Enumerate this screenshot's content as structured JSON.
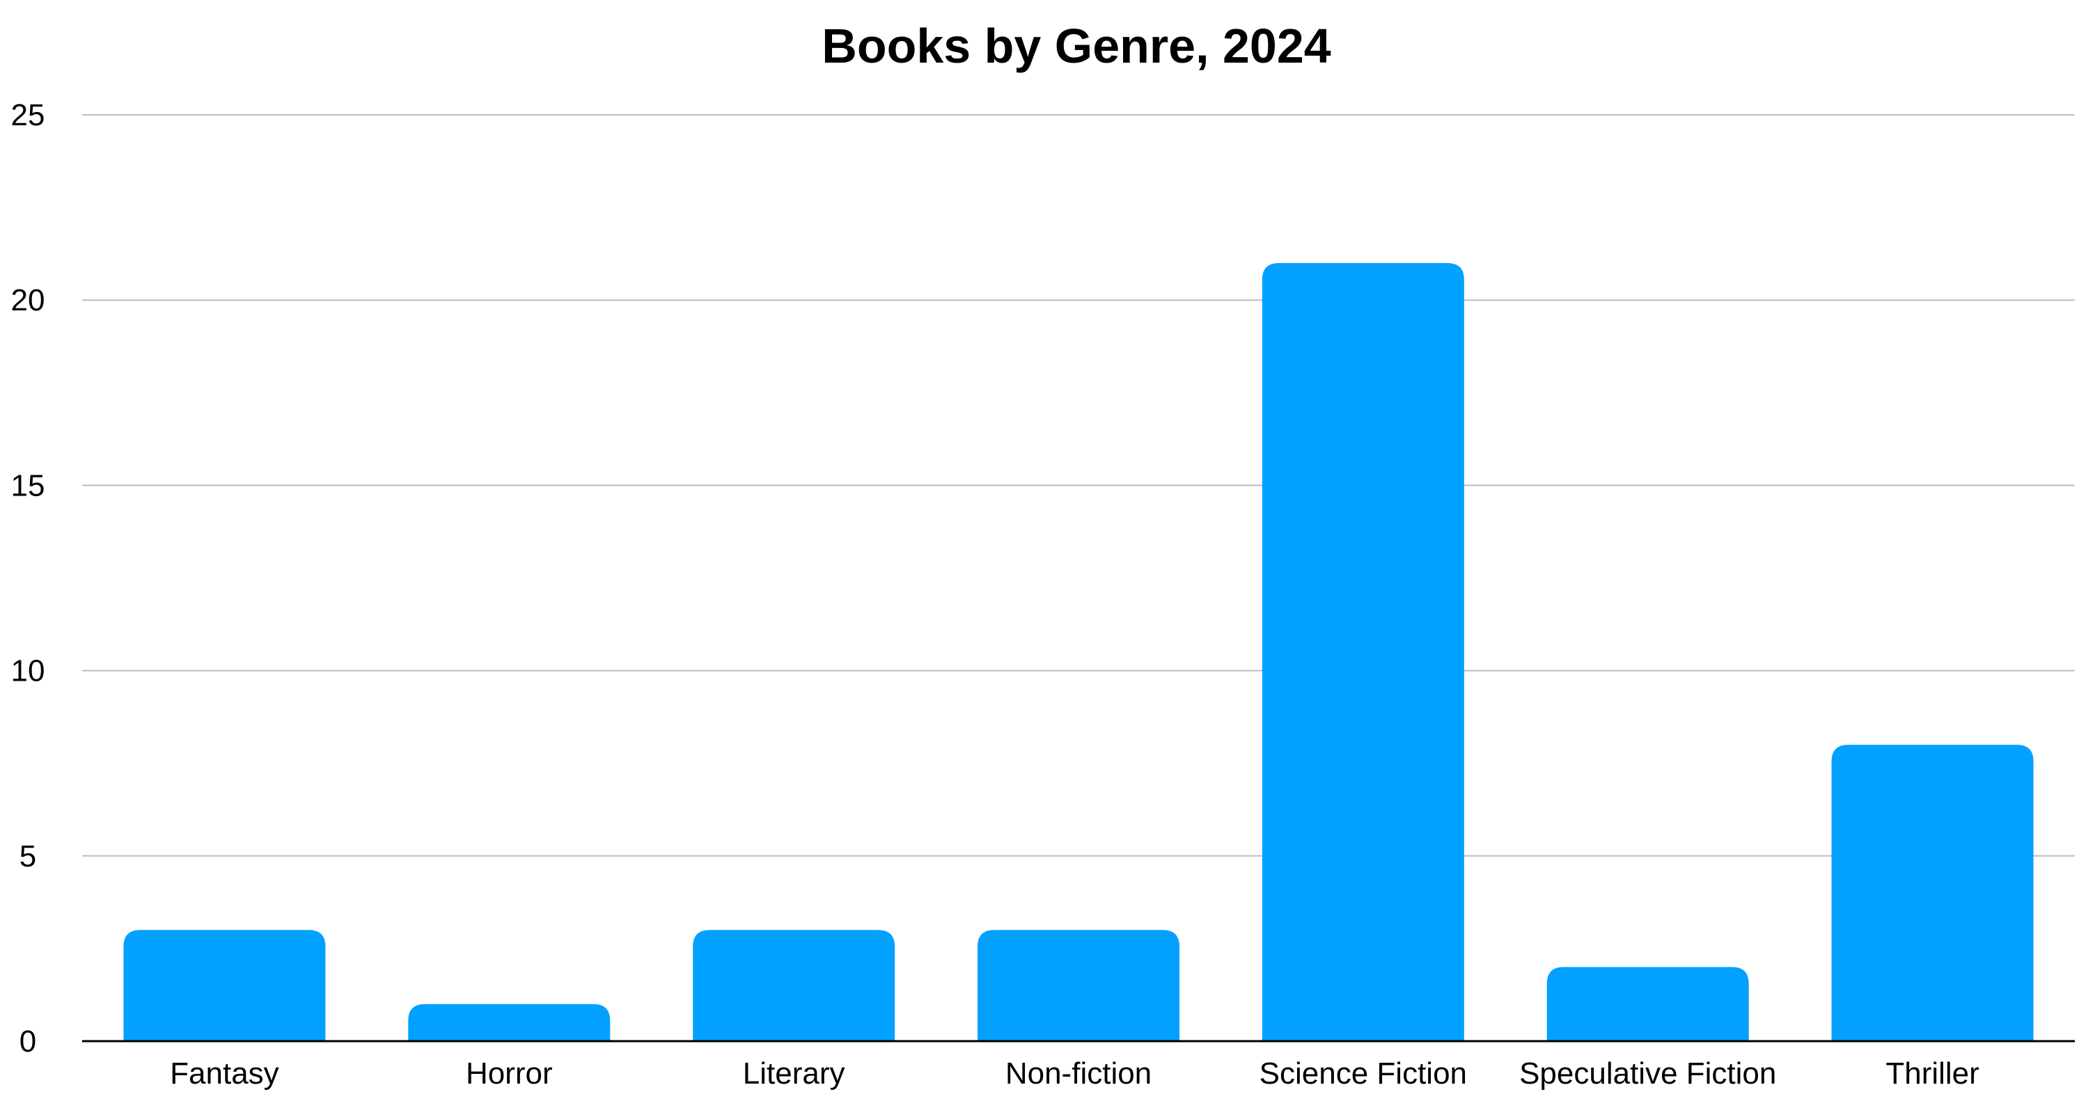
{
  "chart_data": {
    "type": "bar",
    "title": "Books by Genre, 2024",
    "xlabel": "",
    "ylabel": "",
    "categories": [
      "Fantasy",
      "Horror",
      "Literary",
      "Non-fiction",
      "Science Fiction",
      "Speculative Fiction",
      "Thriller"
    ],
    "values": [
      3,
      1,
      3,
      3,
      21,
      2,
      8
    ],
    "ylim": [
      0,
      25
    ],
    "yticks": [
      0,
      5,
      10,
      15,
      20,
      25
    ],
    "grid": true,
    "legend": "none",
    "bar_color": "#03A1FF",
    "grid_color": "#BDBDBD",
    "axis_color": "#000000"
  }
}
